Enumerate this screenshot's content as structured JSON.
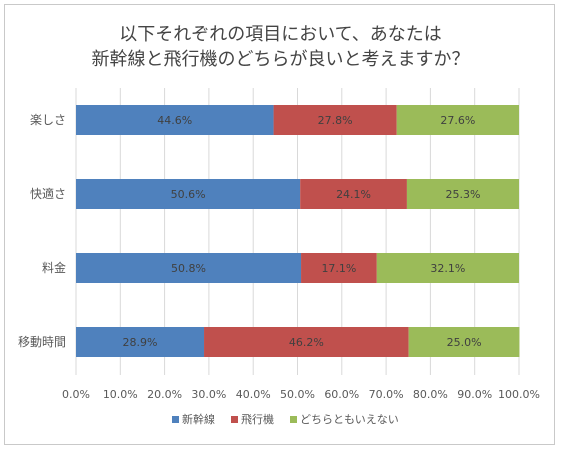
{
  "chart_data": {
    "type": "bar",
    "orientation": "horizontal",
    "stacked": true,
    "title_lines": [
      "以下それぞれの項目において、あなたは",
      "新幹線と飛行機のどちらが良いと考えますか？"
    ],
    "categories": [
      "楽しさ",
      "快適さ",
      "料金",
      "移動時間"
    ],
    "series": [
      {
        "name": "新幹線",
        "color": "#4f81bd",
        "values": [
          44.6,
          50.6,
          50.8,
          28.9
        ],
        "labels": [
          "44.6%",
          "50.6%",
          "50.8%",
          "28.9%"
        ]
      },
      {
        "name": "飛行機",
        "color": "#c0504d",
        "values": [
          27.8,
          24.1,
          17.1,
          46.2
        ],
        "labels": [
          "27.8%",
          "24.1%",
          "17.1%",
          "46.2%"
        ]
      },
      {
        "name": "どちらともいえない",
        "color": "#9bbb59",
        "values": [
          27.6,
          25.3,
          32.1,
          25.0
        ],
        "labels": [
          "27.6%",
          "25.3%",
          "32.1%",
          "25.0%"
        ]
      }
    ],
    "xlim": [
      0,
      100
    ],
    "x_ticks": [
      "0.0%",
      "10.0%",
      "20.0%",
      "30.0%",
      "40.0%",
      "50.0%",
      "60.0%",
      "70.0%",
      "80.0%",
      "90.0%",
      "100.0%"
    ],
    "grid": "vertical",
    "legend_position": "bottom"
  }
}
